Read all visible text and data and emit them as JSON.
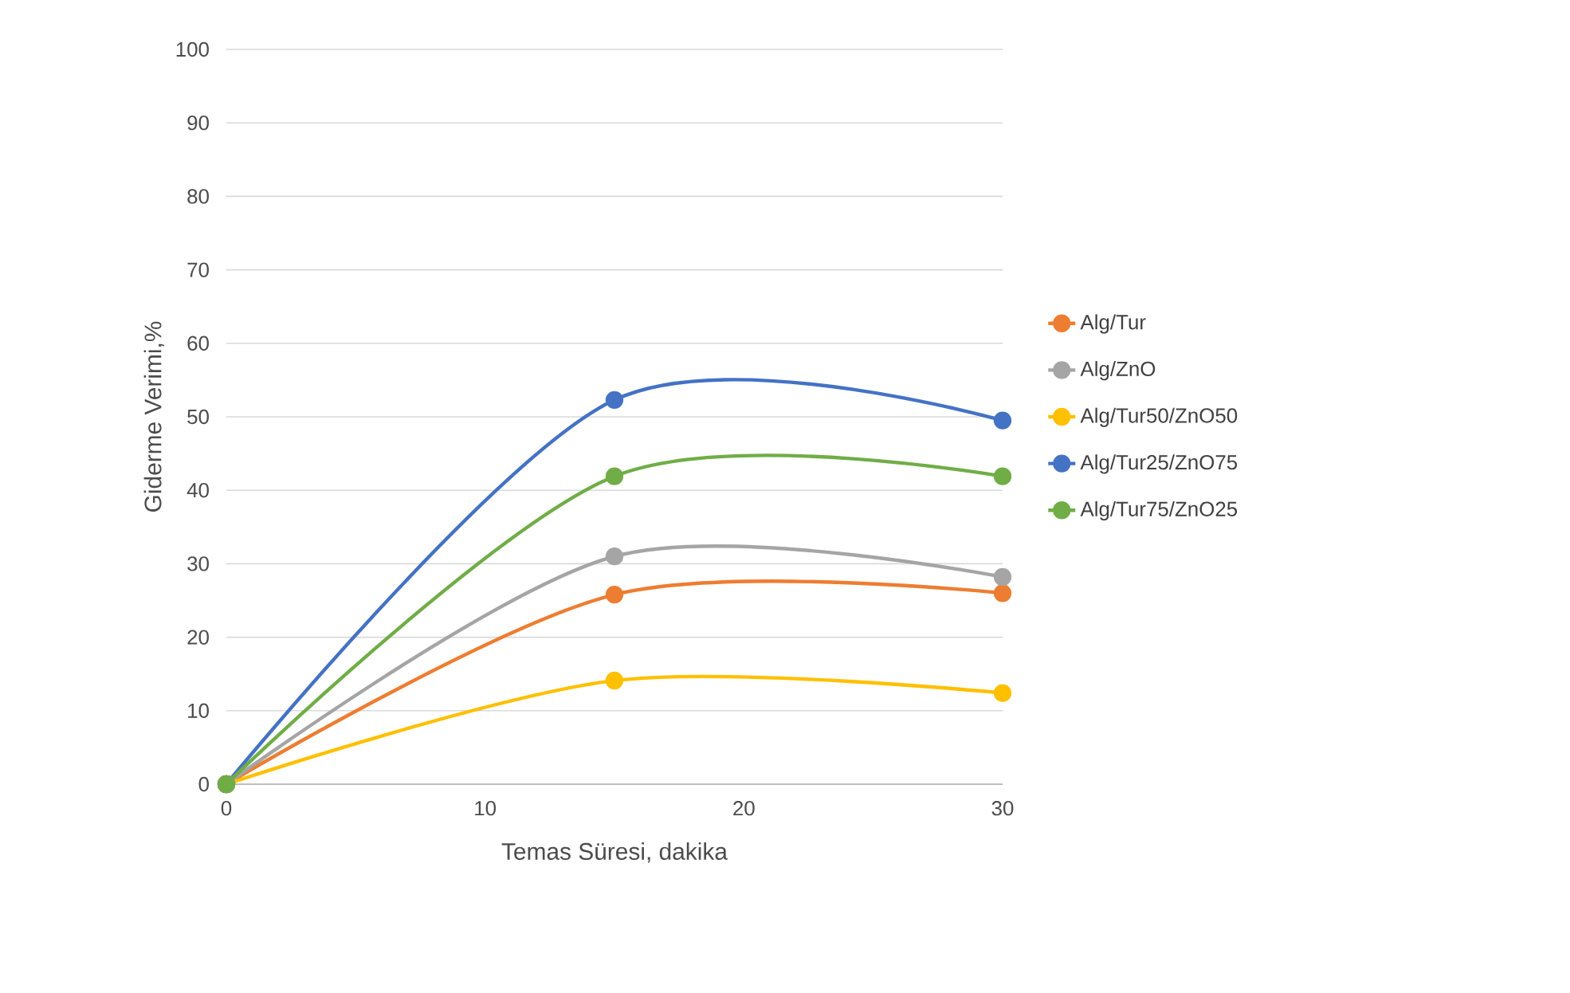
{
  "chart_data": {
    "type": "line",
    "xlabel": "Temas Süresi, dakika",
    "ylabel": "Giderme Verimi,%",
    "x": [
      0,
      15,
      30
    ],
    "series": [
      {
        "name": "Alg/Tur",
        "color": "#ed7d31",
        "values": [
          0,
          25.8,
          26.0
        ]
      },
      {
        "name": "Alg/ZnO",
        "color": "#a5a5a5",
        "values": [
          0,
          31.0,
          28.2
        ]
      },
      {
        "name": "Alg/Tur50/ZnO50",
        "color": "#ffc000",
        "values": [
          0,
          14.1,
          12.4
        ]
      },
      {
        "name": "Alg/Tur25/ZnO75",
        "color": "#4472c4",
        "values": [
          0,
          52.3,
          49.5
        ]
      },
      {
        "name": "Alg/Tur75/ZnO25",
        "color": "#70ad47",
        "values": [
          0,
          41.9,
          41.9
        ]
      }
    ],
    "xlim": [
      0,
      30
    ],
    "xticks": [
      0,
      10,
      20,
      30
    ],
    "ylim": [
      0,
      100
    ],
    "yticks": [
      0,
      10,
      20,
      30,
      40,
      50,
      60,
      70,
      80,
      90,
      100
    ],
    "grid": "y",
    "legend": "right",
    "marker": "circle",
    "line_style": "solid"
  }
}
